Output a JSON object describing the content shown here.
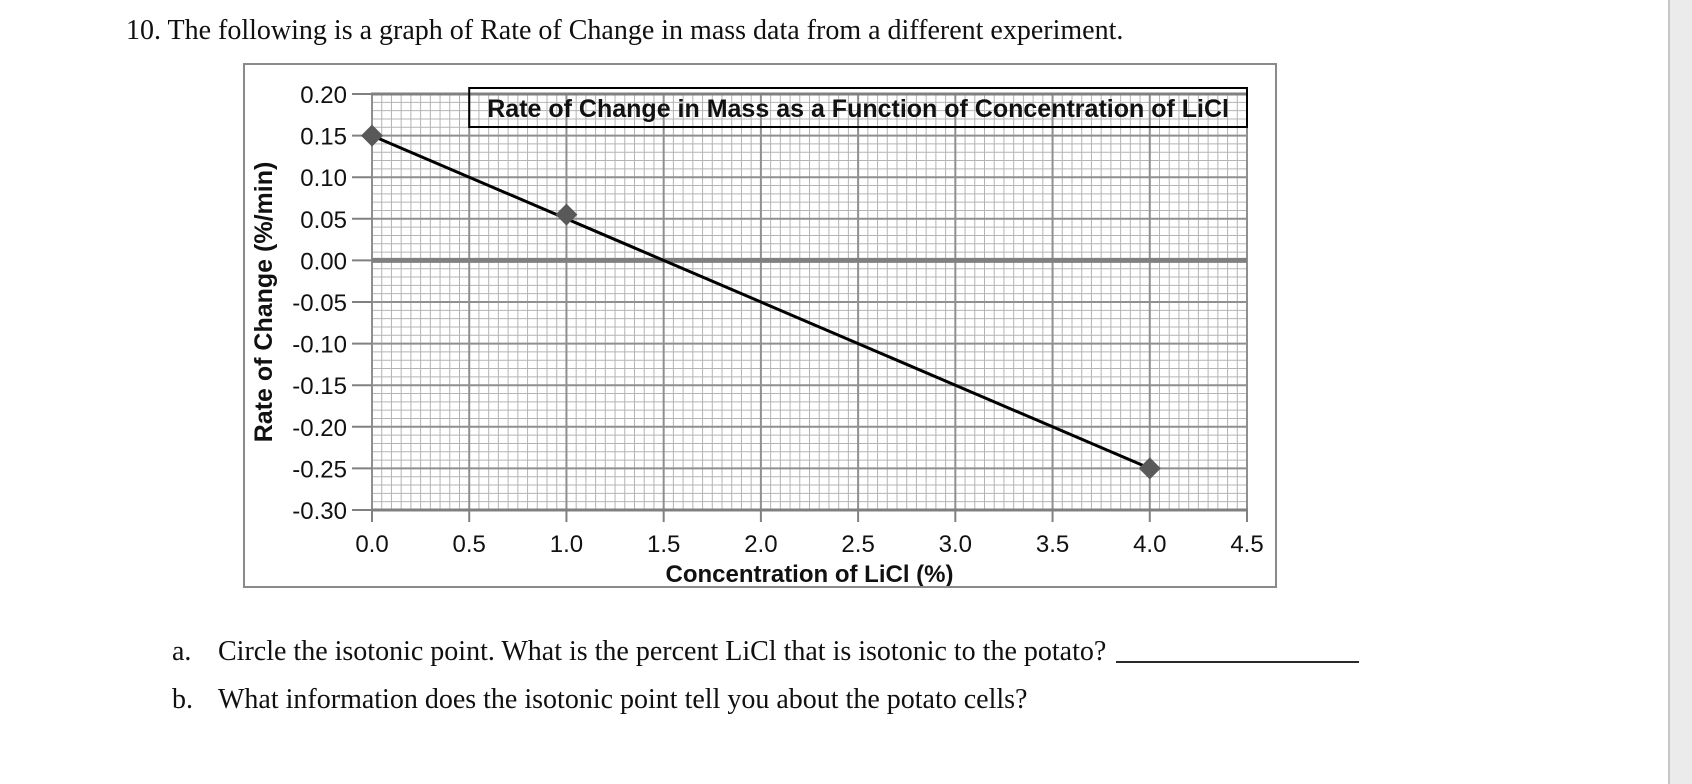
{
  "header": {
    "text": "10. The following is a graph of Rate of Change in mass data from a different experiment."
  },
  "chart_data": {
    "type": "scatter",
    "title": "Rate of Change in Mass as a Function of Concentration of LiCl",
    "xlabel": "Concentration of LiCl (%)",
    "ylabel": "Rate of Change (%/min)",
    "xlim": [
      0,
      4.5
    ],
    "ylim": [
      -0.3,
      0.2
    ],
    "x_major_step": 0.5,
    "x_minor_step": 0.05,
    "y_major_step": 0.05,
    "y_minor_step": 0.01,
    "x_tick_labels": [
      "0.0",
      "0.5",
      "1.0",
      "1.5",
      "2.0",
      "2.5",
      "3.0",
      "3.5",
      "4.0",
      "4.5"
    ],
    "y_tick_labels": [
      "0.20",
      "0.15",
      "0.10",
      "0.05",
      "0.00",
      "-0.05",
      "-0.10",
      "-0.15",
      "-0.20",
      "-0.25",
      "-0.30"
    ],
    "grid": true,
    "legend": false,
    "series": [
      {
        "name": "Rate of Change in Mass",
        "marker": "diamond",
        "color": "#595959",
        "points": [
          {
            "x": 0.0,
            "y": 0.15
          },
          {
            "x": 1.0,
            "y": 0.055
          },
          {
            "x": 4.0,
            "y": -0.25
          }
        ]
      }
    ],
    "trendline": {
      "x1": 0.0,
      "y1": 0.15,
      "x2": 4.0,
      "y2": -0.25,
      "color": "#000000"
    },
    "colors": {
      "grid_minor": "#b4b4b4",
      "grid_major": "#8f8f8f",
      "axis": "#808080",
      "zero_line": "#808080",
      "tick": "#808080",
      "marker": "#595959",
      "trendline": "#000000",
      "title_box_border": "#000000",
      "text": "#111111"
    }
  },
  "questions": {
    "a": {
      "label": "a.",
      "text": "Circle the isotonic point. What is the percent LiCl that is isotonic to the potato?"
    },
    "b": {
      "label": "b.",
      "text": "What information does the isotonic point tell you about the potato cells?"
    }
  }
}
